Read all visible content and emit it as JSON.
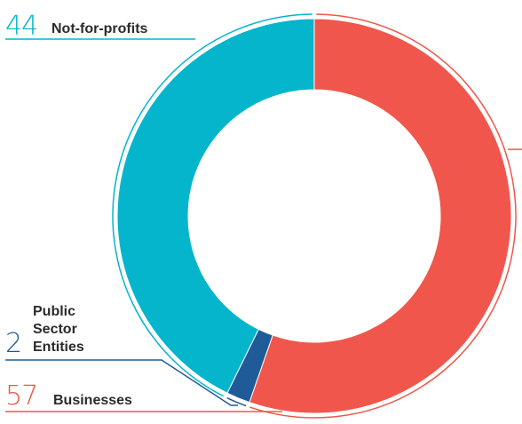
{
  "chart_data": {
    "type": "pie",
    "donut": true,
    "slices": [
      {
        "label": "Businesses",
        "value": 57,
        "color": "#f0564b"
      },
      {
        "label": "Public Sector Entities",
        "value": 2,
        "color": "#1f5b99"
      },
      {
        "label": "Not-for-profits",
        "value": 44,
        "color": "#04b5cc"
      }
    ],
    "annotations": {
      "not_for_profits": {
        "value": "44",
        "label": "Not-for-profits"
      },
      "public_sector": {
        "value": "2",
        "label_lines": [
          "Public",
          "Sector",
          "Entities"
        ]
      },
      "businesses": {
        "value": "57",
        "label": "Businesses"
      }
    }
  }
}
